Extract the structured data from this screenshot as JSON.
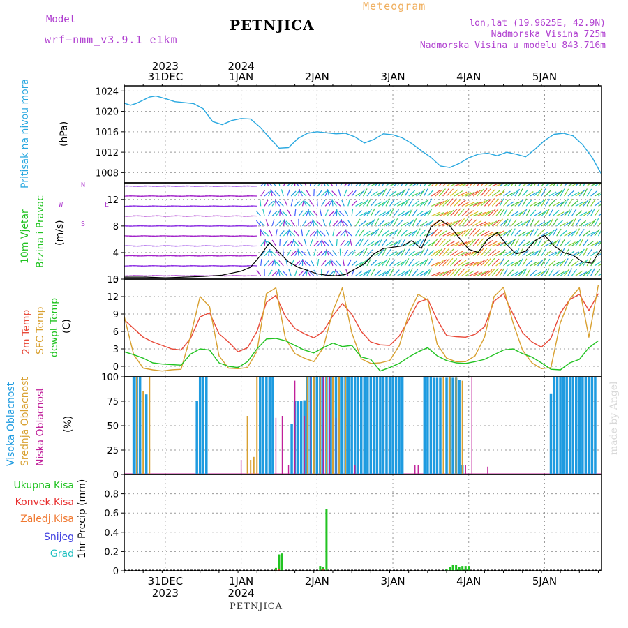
{
  "header": {
    "model_label": "Model",
    "model_name": "wrf−nmm_v3.9.1  e1km",
    "station": "PETNJICA",
    "product": "Meteogram",
    "lonlat": "lon,lat (19.9625E, 42.9N)",
    "elevation": "Nadmorska Visina 725m",
    "model_elevation": "Nadmorska Visina u modelu 843.716m",
    "footer_station": "PETNJICA",
    "credit": "made by Angel"
  },
  "colors": {
    "pressure": "#29a8e0",
    "temp2m": "#e84a3a",
    "sfc_temp": "#d8a030",
    "dewpoint": "#22c322",
    "high_cloud": "#1e9be0",
    "mid_cloud": "#d8a030",
    "low_cloud": "#c0209a",
    "precip_total": "#22c322",
    "precip_conv": "#e83030",
    "freezing": "#f07830",
    "snow": "#4040e0",
    "hail": "#20c0c0",
    "wind_speed_line": "#000000",
    "wind_gust_marks": "#e84a3a"
  },
  "time_axis": {
    "top_labels": [
      {
        "day": "31DEC",
        "year": "2023",
        "hour": 0
      },
      {
        "day": "1JAN",
        "year": "2024",
        "hour": 24
      },
      {
        "day": "2JAN",
        "year": "",
        "hour": 48
      },
      {
        "day": "3JAN",
        "year": "",
        "hour": 72
      },
      {
        "day": "4JAN",
        "year": "",
        "hour": 96
      },
      {
        "day": "5JAN",
        "year": "",
        "hour": 120
      }
    ],
    "start_hour": -13,
    "end_hour": 138
  },
  "chart_data": [
    {
      "type": "line",
      "panel": "pressure",
      "labels": [
        "Pritisak na nivou mora",
        "(hPa)"
      ],
      "ylim": [
        1006,
        1025
      ],
      "ticks": [
        1008,
        1012,
        1016,
        1020,
        1024
      ],
      "series": [
        {
          "x": [
            -13,
            -11,
            -9,
            -7,
            -5,
            -3,
            0,
            3,
            6,
            9,
            12,
            15,
            18,
            21,
            24,
            27,
            30,
            33,
            36,
            39,
            42,
            45,
            48,
            51,
            54,
            57,
            60,
            63,
            66,
            69,
            72,
            75,
            78,
            81,
            84,
            87,
            90,
            93,
            96,
            99,
            102,
            105,
            108,
            111,
            114,
            117,
            120,
            123,
            126,
            129,
            132,
            135,
            138
          ],
          "values": [
            1021.6,
            1021.2,
            1021.6,
            1022.2,
            1022.8,
            1023.0,
            1022.5,
            1021.9,
            1021.7,
            1021.5,
            1020.5,
            1018.0,
            1017.4,
            1018.2,
            1018.6,
            1018.5,
            1016.9,
            1014.8,
            1012.8,
            1012.9,
            1014.7,
            1015.7,
            1016.0,
            1015.8,
            1015.6,
            1015.7,
            1015.0,
            1013.8,
            1014.5,
            1015.6,
            1015.4,
            1014.8,
            1013.7,
            1012.3,
            1011.0,
            1009.3,
            1009.0,
            1009.8,
            1010.9,
            1011.6,
            1011.8,
            1011.3,
            1012.0,
            1011.6,
            1011.1,
            1012.6,
            1014.3,
            1015.5,
            1015.7,
            1015.2,
            1013.5,
            1011.0,
            1007.7
          ]
        }
      ]
    },
    {
      "type": "line",
      "panel": "wind",
      "labels": [
        "10m Vjetar",
        "Brzina i Pravac",
        "(m/s)"
      ],
      "ylim": [
        0,
        14.5
      ],
      "ticks": [
        0,
        4,
        8,
        12
      ],
      "compass": [
        "W",
        "E",
        "N",
        "S"
      ],
      "series": [
        {
          "name": "speed",
          "x": [
            -13,
            -6,
            0,
            6,
            12,
            18,
            21,
            24,
            27,
            30,
            33,
            36,
            39,
            42,
            45,
            48,
            51,
            54,
            57,
            60,
            63,
            66,
            69,
            72,
            75,
            78,
            81,
            84,
            87,
            90,
            93,
            96,
            99,
            102,
            105,
            108,
            111,
            114,
            117,
            120,
            123,
            126,
            129,
            132,
            135,
            138
          ],
          "values": [
            0.3,
            0.3,
            0.2,
            0.3,
            0.4,
            0.6,
            0.9,
            1.2,
            1.8,
            3.5,
            5.5,
            4.0,
            2.6,
            1.8,
            1.3,
            0.8,
            0.6,
            0.5,
            0.7,
            1.5,
            2.3,
            3.8,
            4.6,
            4.8,
            5.0,
            5.8,
            4.6,
            7.8,
            8.9,
            8.0,
            6.2,
            4.5,
            4.0,
            6.0,
            7.0,
            5.2,
            3.8,
            4.2,
            5.8,
            6.6,
            5.0,
            4.0,
            3.6,
            2.6,
            2.4,
            4.6
          ]
        }
      ]
    },
    {
      "type": "line",
      "panel": "temperature",
      "labels": [
        "2m Temp",
        "SFC Temp",
        "dewpt Temp",
        "(C)"
      ],
      "ylim": [
        -1.8,
        15
      ],
      "ticks": [
        0,
        3,
        6,
        9,
        12,
        15
      ],
      "x": [
        -13,
        -10,
        -7,
        -4,
        -1,
        2,
        5,
        8,
        11,
        14,
        17,
        20,
        23,
        26,
        29,
        32,
        35,
        38,
        41,
        44,
        47,
        50,
        53,
        56,
        59,
        62,
        65,
        68,
        71,
        74,
        77,
        80,
        83,
        86,
        89,
        92,
        95,
        98,
        101,
        104,
        107,
        110,
        113,
        116,
        119,
        122,
        125,
        128,
        131,
        134,
        137
      ],
      "series": [
        {
          "name": "2m Temp",
          "values": [
            8.0,
            6.5,
            5.0,
            4.2,
            3.6,
            3.0,
            2.8,
            4.8,
            8.5,
            9.2,
            5.6,
            4.2,
            2.5,
            3.2,
            6.0,
            11.0,
            12.2,
            8.6,
            6.5,
            5.6,
            4.9,
            6.0,
            8.7,
            10.8,
            9.0,
            6.0,
            4.2,
            3.7,
            3.6,
            5.2,
            8.0,
            11.0,
            11.6,
            8.0,
            5.3,
            5.1,
            5.0,
            5.5,
            6.8,
            11.2,
            12.5,
            9.0,
            5.8,
            4.2,
            3.3,
            4.8,
            9.2,
            11.5,
            12.4,
            9.6,
            12.5
          ]
        },
        {
          "name": "SFC Temp",
          "values": [
            8.6,
            2.0,
            -0.3,
            -0.6,
            -0.8,
            -0.6,
            -0.5,
            5.2,
            12.0,
            10.3,
            1.8,
            -0.3,
            -0.4,
            -0.2,
            2.6,
            12.5,
            13.5,
            4.8,
            2.2,
            1.4,
            0.8,
            3.2,
            9.5,
            13.5,
            5.8,
            1.3,
            0.5,
            0.6,
            1.0,
            3.5,
            9.0,
            12.4,
            11.4,
            3.8,
            1.4,
            0.8,
            0.8,
            1.8,
            5.0,
            12.0,
            13.6,
            7.5,
            2.8,
            0.6,
            -0.4,
            -0.2,
            7.5,
            11.6,
            13.5,
            5.0,
            14.0
          ]
        },
        {
          "name": "dewpt Temp",
          "values": [
            2.5,
            2.0,
            1.4,
            0.6,
            0.4,
            0.3,
            0.2,
            2.1,
            3.0,
            2.8,
            0.6,
            0.0,
            -0.2,
            0.8,
            3.0,
            4.7,
            4.8,
            4.4,
            3.6,
            2.8,
            2.3,
            3.2,
            4.0,
            3.4,
            3.6,
            1.6,
            1.2,
            -0.8,
            -0.2,
            0.5,
            1.6,
            2.5,
            3.2,
            1.8,
            1.0,
            0.6,
            0.5,
            0.8,
            1.2,
            2.0,
            2.8,
            3.0,
            2.2,
            1.6,
            0.6,
            -0.5,
            -0.6,
            0.6,
            1.2,
            3.2,
            4.4
          ]
        }
      ]
    },
    {
      "type": "bar",
      "panel": "cloud",
      "labels": [
        "Visoka Oblacnost",
        "Srednja Oblacnost",
        "Niska Oblacnost",
        "(%)"
      ],
      "ylim": [
        0,
        100
      ],
      "ticks": [
        0,
        25,
        50,
        75,
        100
      ],
      "series": [
        {
          "name": "Visoka Oblacnost",
          "bars": [
            [
              -10,
              100
            ],
            [
              -9,
              100
            ],
            [
              -8,
              100
            ],
            [
              -6,
              82
            ],
            [
              10,
              75
            ],
            [
              11,
              100
            ],
            [
              12,
              100
            ],
            [
              13,
              100
            ],
            [
              30,
              100
            ],
            [
              31,
              100
            ],
            [
              32,
              100
            ],
            [
              33,
              100
            ],
            [
              34,
              100
            ],
            [
              40,
              52
            ],
            [
              41,
              75
            ],
            [
              42,
              75
            ],
            [
              43,
              75
            ],
            [
              44,
              76
            ],
            [
              45,
              100
            ],
            [
              46,
              100
            ],
            [
              47,
              100
            ],
            [
              48,
              100
            ],
            [
              49,
              100
            ],
            [
              50,
              100
            ],
            [
              51,
              100
            ],
            [
              52,
              100
            ],
            [
              53,
              100
            ],
            [
              54,
              100
            ],
            [
              55,
              100
            ],
            [
              56,
              100
            ],
            [
              57,
              100
            ],
            [
              58,
              100
            ],
            [
              59,
              100
            ],
            [
              60,
              100
            ],
            [
              61,
              100
            ],
            [
              62,
              100
            ],
            [
              63,
              100
            ],
            [
              64,
              100
            ],
            [
              65,
              100
            ],
            [
              66,
              100
            ],
            [
              67,
              100
            ],
            [
              68,
              100
            ],
            [
              69,
              100
            ],
            [
              70,
              100
            ],
            [
              71,
              100
            ],
            [
              72,
              100
            ],
            [
              73,
              100
            ],
            [
              74,
              100
            ],
            [
              75,
              100
            ],
            [
              82,
              100
            ],
            [
              83,
              100
            ],
            [
              84,
              100
            ],
            [
              85,
              99
            ],
            [
              86,
              99
            ],
            [
              87,
              99
            ],
            [
              89,
              99
            ],
            [
              90,
              99
            ],
            [
              91,
              99
            ],
            [
              92,
              99
            ],
            [
              93,
              97
            ],
            [
              94,
              10
            ],
            [
              122,
              83
            ],
            [
              123,
              100
            ],
            [
              124,
              100
            ],
            [
              125,
              100
            ],
            [
              126,
              100
            ],
            [
              127,
              100
            ],
            [
              128,
              100
            ],
            [
              129,
              100
            ],
            [
              130,
              100
            ],
            [
              131,
              100
            ],
            [
              132,
              100
            ],
            [
              133,
              100
            ],
            [
              134,
              100
            ],
            [
              135,
              100
            ],
            [
              136,
              100
            ]
          ]
        },
        {
          "name": "Srednja Oblacnost",
          "bars": [
            [
              -9,
              100
            ],
            [
              -7,
              85
            ],
            [
              -5,
              100
            ],
            [
              26,
              60
            ],
            [
              27,
              15
            ],
            [
              28,
              18
            ],
            [
              29,
              100
            ],
            [
              45,
              100
            ],
            [
              47,
              100
            ],
            [
              49,
              100
            ],
            [
              51,
              100
            ],
            [
              53,
              100
            ],
            [
              55,
              100
            ],
            [
              57,
              100
            ],
            [
              88,
              100
            ],
            [
              90,
              100
            ],
            [
              92,
              100
            ],
            [
              94,
              96
            ]
          ]
        },
        {
          "name": "Niska Oblacnost",
          "bars": [
            [
              24,
              15
            ],
            [
              35,
              58
            ],
            [
              37,
              60
            ],
            [
              39,
              10
            ],
            [
              41,
              96
            ],
            [
              44,
              60
            ],
            [
              46,
              100
            ],
            [
              50,
              100
            ],
            [
              52,
              100
            ],
            [
              54,
              58
            ],
            [
              60,
              10
            ],
            [
              79,
              10
            ],
            [
              80,
              10
            ],
            [
              95,
              10
            ],
            [
              97,
              100
            ],
            [
              102,
              8
            ]
          ]
        }
      ]
    },
    {
      "type": "bar",
      "panel": "precipitation",
      "labels": [
        "1hr Precip (mm)"
      ],
      "legend": [
        "Ukupna Kisa",
        "Konvek.Kisa",
        "Zaledj.Kisa",
        "Snijeg",
        "Grad"
      ],
      "ylim": [
        0,
        1.0
      ],
      "ticks": [
        0,
        0.2,
        0.4,
        0.6,
        0.8
      ],
      "series": [
        {
          "name": "Ukupna Kisa",
          "bars": [
            [
              35,
              0.03
            ],
            [
              36,
              0.17
            ],
            [
              37,
              0.18
            ],
            [
              49,
              0.05
            ],
            [
              50,
              0.04
            ],
            [
              51,
              0.64
            ],
            [
              89,
              0.02
            ],
            [
              90,
              0.04
            ],
            [
              91,
              0.06
            ],
            [
              92,
              0.06
            ],
            [
              93,
              0.04
            ],
            [
              94,
              0.05
            ],
            [
              95,
              0.05
            ],
            [
              96,
              0.05
            ]
          ]
        },
        {
          "name": "Konvek.Kisa",
          "bars": [
            [
              35,
              0.01
            ],
            [
              36,
              0.02
            ],
            [
              50,
              0.02
            ]
          ]
        }
      ]
    }
  ]
}
